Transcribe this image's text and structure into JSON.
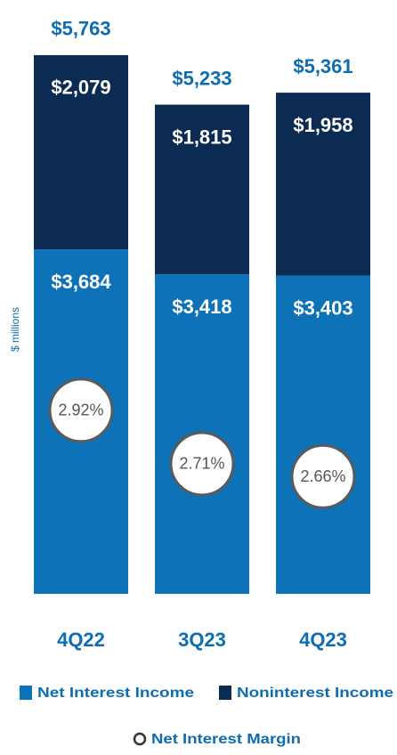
{
  "chart_data": {
    "type": "bar",
    "stacked": true,
    "y_label": "$ millions",
    "categories": [
      "4Q22",
      "3Q23",
      "4Q23"
    ],
    "series": [
      {
        "name": "Net Interest Income",
        "color": "#0e72b8",
        "values": [
          3684,
          3418,
          3403
        ],
        "value_labels": [
          "$3,684",
          "$3,418",
          "$3,403"
        ]
      },
      {
        "name": "Noninterest Income",
        "color": "#0c2b52",
        "values": [
          2079,
          1815,
          1958
        ],
        "value_labels": [
          "$2,079",
          "$1,815",
          "$1,958"
        ]
      },
      {
        "name": "Net Interest Margin",
        "type": "marker",
        "axis": "y2",
        "color": "#ffffff",
        "values": [
          2.92,
          2.71,
          2.66
        ],
        "value_labels": [
          "2.92%",
          "2.71%",
          "2.66%"
        ]
      }
    ],
    "totals": [
      5763,
      5233,
      5361
    ],
    "total_labels": [
      "$5,763",
      "$5,233",
      "$5,361"
    ],
    "ylim": [
      0,
      6000
    ],
    "y2lim": [
      2.2,
      4.4
    ]
  }
}
